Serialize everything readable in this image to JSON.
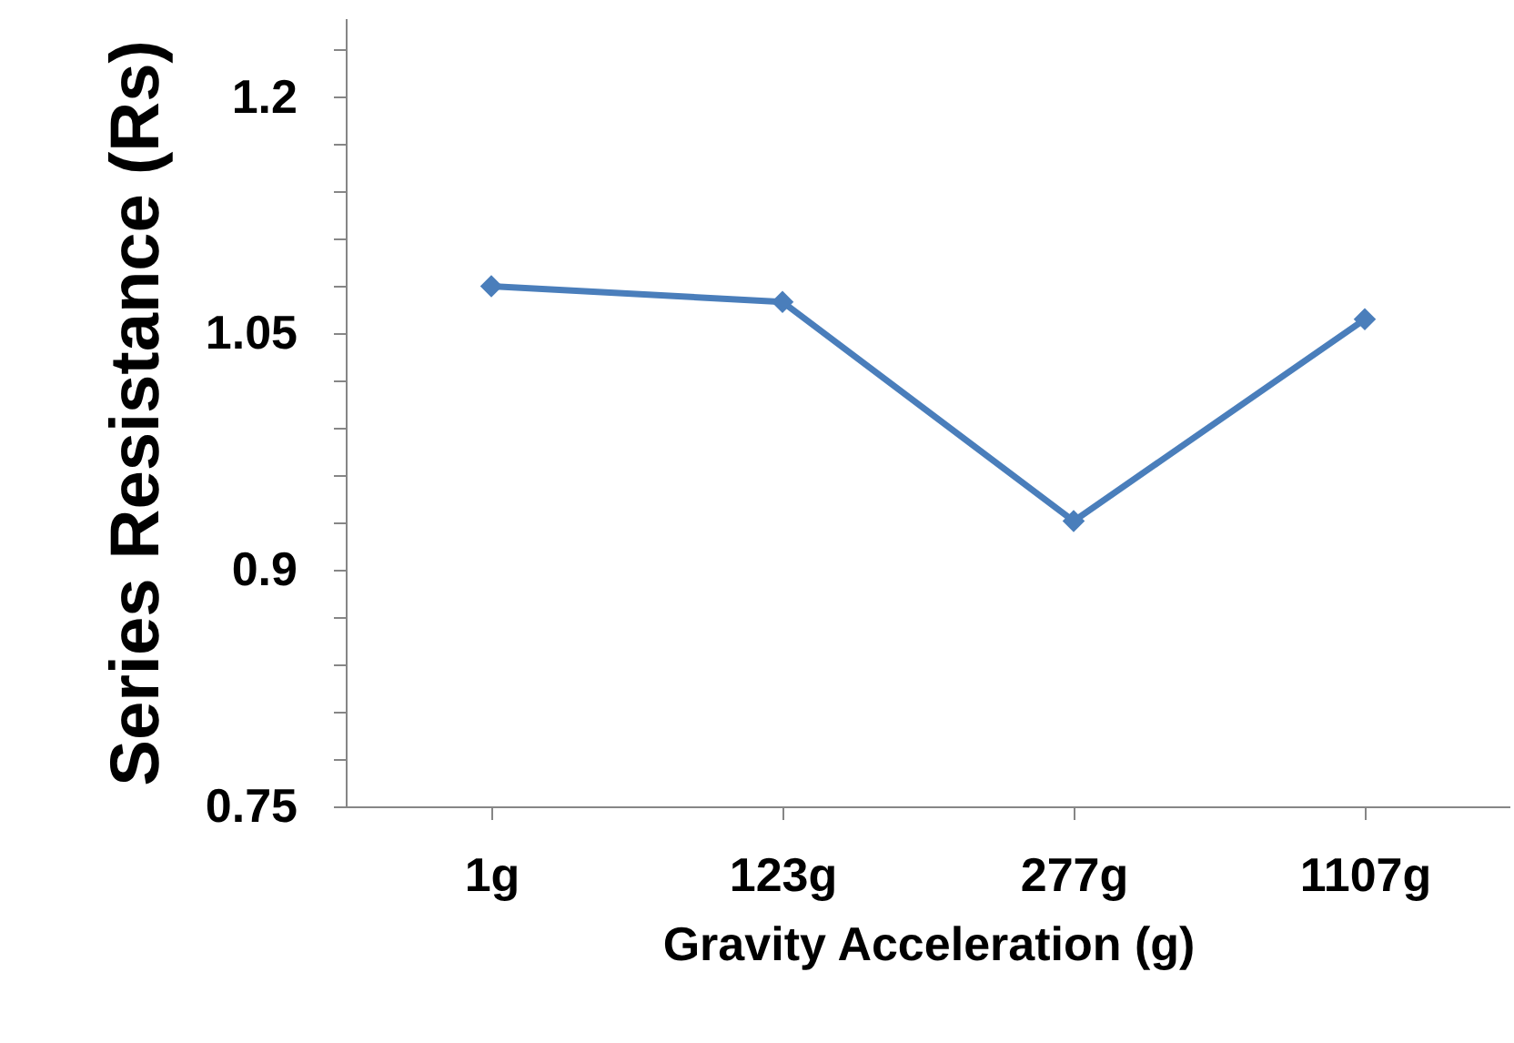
{
  "chart_data": {
    "type": "line",
    "xlabel": "Gravity Acceleration (g)",
    "ylabel": "Series Resistance (Rs)",
    "categories": [
      "1g",
      "123g",
      "277g",
      "1107g"
    ],
    "series": [
      {
        "color": "#4a7ebb",
        "values": [
          1.08,
          1.07,
          0.931,
          1.059
        ]
      }
    ],
    "ylim": [
      0.75,
      1.25
    ],
    "yticks": [
      0.75,
      {
        "value": 0.78,
        "label": null
      },
      {
        "value": 0.81,
        "label": null
      },
      {
        "value": 0.84,
        "label": null
      },
      {
        "value": 0.87,
        "label": null
      },
      0.9,
      {
        "value": 0.93,
        "label": null
      },
      {
        "value": 0.96,
        "label": null
      },
      {
        "value": 0.99,
        "label": null
      },
      {
        "value": 1.02,
        "label": null
      },
      1.05,
      {
        "value": 1.08,
        "label": null
      },
      {
        "value": 1.11,
        "label": null
      },
      {
        "value": 1.14,
        "label": null
      },
      {
        "value": 1.17,
        "label": null
      },
      1.2,
      {
        "value": 1.23,
        "label": null
      }
    ],
    "marker": "diamond",
    "line_style": "solid",
    "grid": false
  }
}
